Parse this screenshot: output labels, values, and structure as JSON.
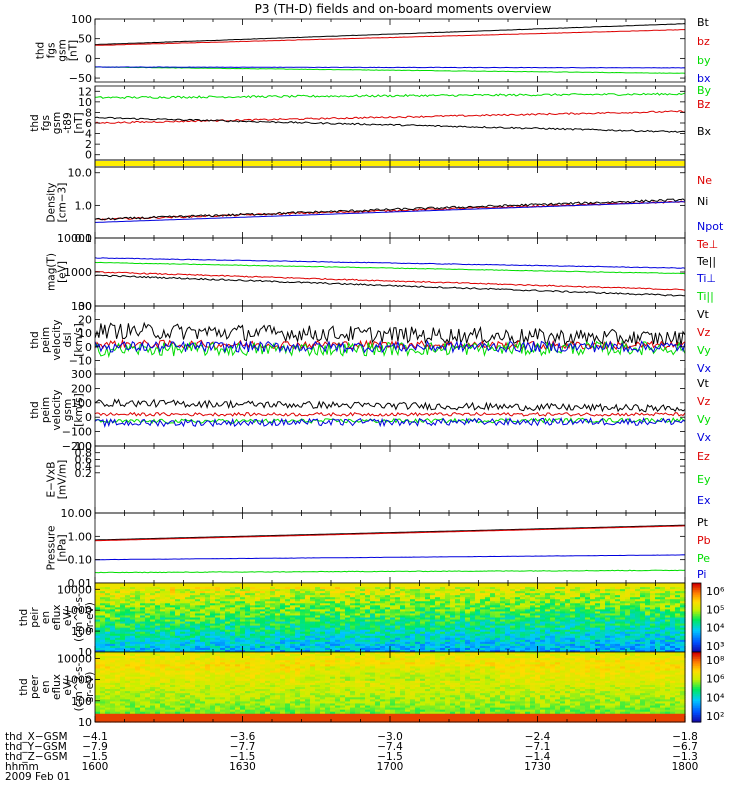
{
  "title": "P3 (TH-D) fields and on-board moments overview",
  "colors": {
    "black": "#000000",
    "red": "#dd0000",
    "green": "#00dd00",
    "blue": "#0000dd",
    "yellow": "#ffee00"
  },
  "chart_data": [
    {
      "type": "line",
      "ylabel": [
        "thd",
        "fgs",
        "gsm",
        "[nT]"
      ],
      "ylim": [
        -60,
        100
      ],
      "yticks": [
        "100",
        "50",
        "0",
        "−50"
      ],
      "ytick_values": [
        100,
        50,
        0,
        -50
      ],
      "series": [
        {
          "name": "Bt",
          "color": "#000000",
          "start": 35,
          "end": 88,
          "noise": 0.4
        },
        {
          "name": "bz",
          "color": "#dd0000",
          "start": 33,
          "end": 73,
          "noise": 0.4
        },
        {
          "name": "by",
          "color": "#00dd00",
          "start": -22,
          "end": -38,
          "noise": 0.5
        },
        {
          "name": "bx",
          "color": "#0000dd",
          "start": -22,
          "end": -24,
          "noise": 0.5
        }
      ]
    },
    {
      "type": "line",
      "ylabel": [
        "thd",
        "fgs",
        "gsm",
        "-t89",
        "[nT]"
      ],
      "ylim": [
        -1,
        13
      ],
      "yticks": [
        "12",
        "10",
        "8",
        "6",
        "4",
        "2",
        "0"
      ],
      "ytick_values": [
        12,
        10,
        8,
        6,
        4,
        2,
        0
      ],
      "series": [
        {
          "name": "By",
          "color": "#00dd00",
          "start": 10.8,
          "end": 11.5,
          "noise": 0.2
        },
        {
          "name": "Bz",
          "color": "#dd0000",
          "start": 6.0,
          "end": 8.2,
          "noise": 0.15
        },
        {
          "name": "Bx",
          "color": "#000000",
          "start": 7.0,
          "end": 4.3,
          "noise": 0.15
        }
      ]
    },
    {
      "type": "bar",
      "ylabel": [],
      "series": []
    },
    {
      "type": "line",
      "ylabel": [
        "Density",
        "[cm−3]"
      ],
      "log": true,
      "ylim": [
        0.1,
        15
      ],
      "yticks": [
        "10.0",
        "1.0",
        "0.1"
      ],
      "ytick_values": [
        10,
        1,
        0.1
      ],
      "series": [
        {
          "name": "Ne",
          "color": "#dd0000",
          "start": 0.37,
          "end": 1.3,
          "noise": 0.06
        },
        {
          "name": "Ni",
          "color": "#000000",
          "start": 0.37,
          "end": 1.5,
          "noise": 0.08
        },
        {
          "name": "Npot",
          "color": "#0000dd",
          "start": 0.3,
          "end": 1.3,
          "noise": 0.0
        }
      ]
    },
    {
      "type": "line",
      "ylabel": [
        "mag(T)",
        "[eV]"
      ],
      "log": true,
      "ylim": [
        100,
        10000
      ],
      "yticks": [
        "10000",
        "1000",
        "100"
      ],
      "ytick_values": [
        10000,
        1000,
        100
      ],
      "series": [
        {
          "name": "Te⊥",
          "color": "#dd0000",
          "start": 1000,
          "end": 300,
          "noise": 0.04
        },
        {
          "name": "Te||",
          "color": "#000000",
          "start": 800,
          "end": 200,
          "noise": 0.05
        },
        {
          "name": "Ti⊥",
          "color": "#0000dd",
          "start": 2600,
          "end": 1300,
          "noise": 0.02
        },
        {
          "name": "Ti||",
          "color": "#00dd00",
          "start": 1900,
          "end": 900,
          "noise": 0.02
        }
      ]
    },
    {
      "type": "line",
      "ylabel": [
        "thd",
        "peim",
        "velocity",
        "dsl",
        "[km/s]"
      ],
      "ylim": [
        -20,
        30
      ],
      "yticks": [
        "30",
        "20",
        "10",
        "0",
        "−10"
      ],
      "ytick_values": [
        30,
        20,
        10,
        0,
        -10
      ],
      "series": [
        {
          "name": "Vt",
          "color": "#000000",
          "start": 12,
          "end": 6,
          "noise": 6
        },
        {
          "name": "Vz",
          "color": "#dd0000",
          "start": 2,
          "end": 1,
          "noise": 3
        },
        {
          "name": "Vy",
          "color": "#00dd00",
          "start": -2,
          "end": -1,
          "noise": 5
        },
        {
          "name": "Vx",
          "color": "#0000dd",
          "start": 0,
          "end": 0,
          "noise": 4
        }
      ]
    },
    {
      "type": "line",
      "ylabel": [
        "thd",
        "peim",
        "velocity",
        "gsm",
        "[km/s]"
      ],
      "ylim": [
        -200,
        300
      ],
      "yticks": [
        "300",
        "200",
        "100",
        "0",
        "−100",
        "−200"
      ],
      "ytick_values": [
        300,
        200,
        100,
        0,
        -100,
        -200
      ],
      "series": [
        {
          "name": "Vt",
          "color": "#000000",
          "start": 100,
          "end": 60,
          "noise": 25
        },
        {
          "name": "Vz",
          "color": "#dd0000",
          "start": 20,
          "end": 20,
          "noise": 12
        },
        {
          "name": "Vy",
          "color": "#00dd00",
          "start": -30,
          "end": -20,
          "noise": 15
        },
        {
          "name": "Vx",
          "color": "#0000dd",
          "start": -40,
          "end": -30,
          "noise": 25
        }
      ]
    },
    {
      "type": "line",
      "ylabel": [
        "E−VxB",
        "[mV/m]"
      ],
      "ylim": [
        -1,
        1
      ],
      "yticks": [
        "1.0",
        "0.8",
        "0.6",
        "0.4",
        "0.2"
      ],
      "ytick_values": [
        1.0,
        0.8,
        0.6,
        0.4,
        0.2
      ],
      "series": [
        {
          "name": "Ez",
          "color": "#dd0000"
        },
        {
          "name": "Ey",
          "color": "#00dd00"
        },
        {
          "name": "Ex",
          "color": "#0000dd"
        }
      ]
    },
    {
      "type": "line",
      "ylabel": [
        "Pressure",
        "[nPa]"
      ],
      "log": true,
      "ylim": [
        0.01,
        10
      ],
      "yticks": [
        "10.00",
        "1.00",
        "0.10",
        "0.01"
      ],
      "ytick_values": [
        10,
        1,
        0.1,
        0.01
      ],
      "series": [
        {
          "name": "Pt",
          "color": "#000000",
          "start": 0.7,
          "end": 3.0,
          "noise": 0.0
        },
        {
          "name": "Pb",
          "color": "#dd0000",
          "start": 0.65,
          "end": 2.8,
          "noise": 0.0
        },
        {
          "name": "Pe",
          "color": "#00dd00",
          "start": 0.028,
          "end": 0.035,
          "noise": 0.03
        },
        {
          "name": "Pi",
          "color": "#0000dd",
          "start": 0.1,
          "end": 0.16,
          "noise": 0.01
        }
      ]
    },
    {
      "type": "heatmap",
      "ylabel": [
        "thd",
        "peir",
        "en",
        "eflux",
        "eV/",
        "(cm^2-s-",
        "sr-eV)"
      ],
      "log": true,
      "ylim": [
        10,
        20000
      ],
      "yticks": [
        "10000",
        "1000",
        "100",
        "10"
      ],
      "ytick_values": [
        10000,
        1000,
        100,
        10
      ],
      "colorbar_ticks": [
        "10⁶",
        "10⁵",
        "10⁴",
        "10³"
      ]
    },
    {
      "type": "heatmap",
      "ylabel": [
        "thd",
        "peer",
        "en",
        "eflux",
        "eV/",
        "(cm^2-s-",
        "sr-eV)"
      ],
      "log": true,
      "ylim": [
        10,
        20000
      ],
      "yticks": [
        "10000",
        "1000",
        "100",
        "10"
      ],
      "ytick_values": [
        10000,
        1000,
        100,
        10
      ],
      "colorbar_ticks": [
        "10⁸",
        "10⁶",
        "10⁴",
        "10²"
      ]
    }
  ],
  "x_axis": {
    "rows": [
      {
        "label": "thd_X−GSM",
        "values": [
          "−4.1",
          "−3.6",
          "−3.0",
          "−2.4",
          "−1.8"
        ]
      },
      {
        "label": "thd_Y−GSM",
        "values": [
          "−7.9",
          "−7.7",
          "−7.4",
          "−7.1",
          "−6.7"
        ]
      },
      {
        "label": "thd_Z−GSM",
        "values": [
          "−1.5",
          "−1.5",
          "−1.5",
          "−1.4",
          "−1.3"
        ]
      },
      {
        "label": "hhmm",
        "values": [
          "1600",
          "1630",
          "1700",
          "1730",
          "1800"
        ]
      }
    ],
    "date": "2009 Feb 01"
  }
}
